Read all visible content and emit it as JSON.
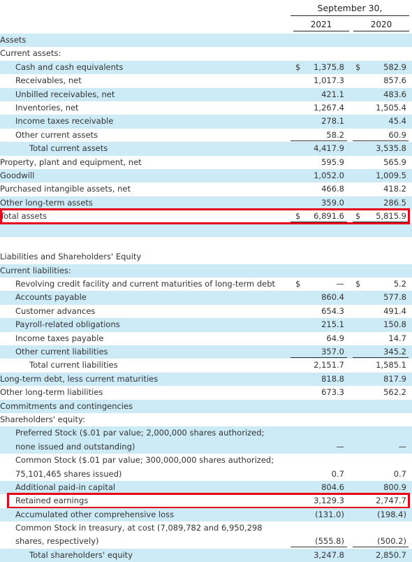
{
  "header": {
    "period": "September 30,",
    "year1": "2021",
    "year2": "2020"
  },
  "rows": [
    {
      "label": "Assets",
      "indent": 0,
      "dollar1": "",
      "v1": "",
      "dollar2": "",
      "v2": "",
      "alt": true
    },
    {
      "label": "Current assets:",
      "indent": 0,
      "dollar1": "",
      "v1": "",
      "dollar2": "",
      "v2": "",
      "alt": false
    },
    {
      "label": "Cash and cash equivalents",
      "indent": 1,
      "dollar1": "$",
      "v1": "1,375.8",
      "dollar2": "$",
      "v2": "582.9",
      "alt": true
    },
    {
      "label": "Receivables, net",
      "indent": 1,
      "dollar1": "",
      "v1": "1,017.3",
      "dollar2": "",
      "v2": "857.6",
      "alt": false
    },
    {
      "label": "Unbilled receivables, net",
      "indent": 1,
      "dollar1": "",
      "v1": "421.1",
      "dollar2": "",
      "v2": "483.6",
      "alt": true
    },
    {
      "label": "Inventories, net",
      "indent": 1,
      "dollar1": "",
      "v1": "1,267.4",
      "dollar2": "",
      "v2": "1,505.4",
      "alt": false
    },
    {
      "label": "Income taxes receivable",
      "indent": 1,
      "dollar1": "",
      "v1": "278.1",
      "dollar2": "",
      "v2": "45.4",
      "alt": true
    },
    {
      "label": "Other current assets",
      "indent": 1,
      "dollar1": "",
      "v1": "58.2",
      "dollar2": "",
      "v2": "60.9",
      "alt": false,
      "under": "bot"
    },
    {
      "label": "Total current assets",
      "indent": 2,
      "dollar1": "",
      "v1": "4,417.9",
      "dollar2": "",
      "v2": "3,535.8",
      "alt": true
    },
    {
      "label": "Property, plant and equipment, net",
      "indent": 0,
      "dollar1": "",
      "v1": "595.9",
      "dollar2": "",
      "v2": "565.9",
      "alt": false
    },
    {
      "label": "Goodwill",
      "indent": 0,
      "dollar1": "",
      "v1": "1,052.0",
      "dollar2": "",
      "v2": "1,009.5",
      "alt": true
    },
    {
      "label": "Purchased intangible assets, net",
      "indent": 0,
      "dollar1": "",
      "v1": "466.8",
      "dollar2": "",
      "v2": "418.2",
      "alt": false
    },
    {
      "label": "Other long-term assets",
      "indent": 0,
      "dollar1": "",
      "v1": "359.0",
      "dollar2": "",
      "v2": "286.5",
      "alt": true,
      "under": "bot"
    },
    {
      "label": "Total assets",
      "indent": 0,
      "dollar1": "$",
      "v1": "6,891.6",
      "dollar2": "$",
      "v2": "5,815.9",
      "alt": false,
      "under": "dbl",
      "highlight": "full"
    },
    {
      "gap": true,
      "alt": true
    },
    {
      "gap": true,
      "alt": false
    },
    {
      "label": "Liabilities and Shareholders' Equity",
      "indent": 0,
      "dollar1": "",
      "v1": "",
      "dollar2": "",
      "v2": "",
      "alt": false
    },
    {
      "label": "Current liabilities:",
      "indent": 0,
      "dollar1": "",
      "v1": "",
      "dollar2": "",
      "v2": "",
      "alt": true
    },
    {
      "label": "Revolving credit facility and current maturities of long-term debt",
      "indent": 1,
      "dollar1": "$",
      "v1": "—",
      "dollar2": "$",
      "v2": "5.2",
      "alt": false
    },
    {
      "label": "Accounts payable",
      "indent": 1,
      "dollar1": "",
      "v1": "860.4",
      "dollar2": "",
      "v2": "577.8",
      "alt": true
    },
    {
      "label": "Customer advances",
      "indent": 1,
      "dollar1": "",
      "v1": "654.3",
      "dollar2": "",
      "v2": "491.4",
      "alt": false
    },
    {
      "label": "Payroll-related obligations",
      "indent": 1,
      "dollar1": "",
      "v1": "215.1",
      "dollar2": "",
      "v2": "150.8",
      "alt": true
    },
    {
      "label": "Income taxes payable",
      "indent": 1,
      "dollar1": "",
      "v1": "64.9",
      "dollar2": "",
      "v2": "14.7",
      "alt": false
    },
    {
      "label": "Other current liabilities",
      "indent": 1,
      "dollar1": "",
      "v1": "357.0",
      "dollar2": "",
      "v2": "345.2",
      "alt": true,
      "under": "bot"
    },
    {
      "label": "Total current liabilities",
      "indent": 2,
      "dollar1": "",
      "v1": "2,151.7",
      "dollar2": "",
      "v2": "1,585.1",
      "alt": false
    },
    {
      "label": "Long-term debt, less current maturities",
      "indent": 0,
      "dollar1": "",
      "v1": "818.8",
      "dollar2": "",
      "v2": "817.9",
      "alt": true
    },
    {
      "label": "Other long-term liabilities",
      "indent": 0,
      "dollar1": "",
      "v1": "673.3",
      "dollar2": "",
      "v2": "562.2",
      "alt": false
    },
    {
      "label": "Commitments and contingencies",
      "indent": 0,
      "dollar1": "",
      "v1": "",
      "dollar2": "",
      "v2": "",
      "alt": true
    },
    {
      "label": "Shareholders' equity:",
      "indent": 0,
      "dollar1": "",
      "v1": "",
      "dollar2": "",
      "v2": "",
      "alt": false
    },
    {
      "label": "Preferred Stock ($.01 par value; 2,000,000 shares authorized;",
      "indent": 1,
      "dollar1": "",
      "v1": "",
      "dollar2": "",
      "v2": "",
      "alt": true
    },
    {
      "label": "none issued and outstanding)",
      "indent": 1,
      "dollar1": "",
      "v1": "—",
      "dollar2": "",
      "v2": "—",
      "alt": true
    },
    {
      "label": "Common Stock ($.01 par value; 300,000,000 shares authorized;",
      "indent": 1,
      "dollar1": "",
      "v1": "",
      "dollar2": "",
      "v2": "",
      "alt": false
    },
    {
      "label": "75,101,465 shares issued)",
      "indent": 1,
      "dollar1": "",
      "v1": "0.7",
      "dollar2": "",
      "v2": "0.7",
      "alt": false
    },
    {
      "label": "Additional paid-in capital",
      "indent": 1,
      "dollar1": "",
      "v1": "804.6",
      "dollar2": "",
      "v2": "800.9",
      "alt": true
    },
    {
      "label": "Retained earnings",
      "indent": 1,
      "dollar1": "",
      "v1": "3,129.3",
      "dollar2": "",
      "v2": "2,747.7",
      "alt": false,
      "highlight": "partial"
    },
    {
      "label": "Accumulated other comprehensive loss",
      "indent": 1,
      "dollar1": "",
      "v1": "(131.0)",
      "dollar2": "",
      "v2": "(198.4)",
      "alt": true
    },
    {
      "label": "Common Stock in treasury, at cost (7,089,782 and 6,950,298",
      "indent": 1,
      "dollar1": "",
      "v1": "",
      "dollar2": "",
      "v2": "",
      "alt": false
    },
    {
      "label": "shares, respectively)",
      "indent": 1,
      "dollar1": "",
      "v1": "(555.8)",
      "dollar2": "",
      "v2": "(500.2)",
      "alt": false,
      "under": "bot"
    },
    {
      "label": "Total shareholders' equity",
      "indent": 2,
      "dollar1": "",
      "v1": "3,247.8",
      "dollar2": "",
      "v2": "2,850.7",
      "alt": true
    }
  ]
}
